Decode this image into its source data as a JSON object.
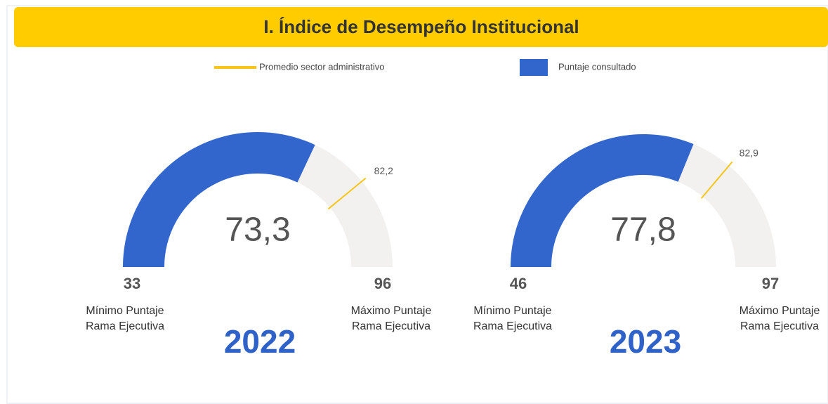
{
  "header": {
    "title": "I. Índice de Desempeño Institucional"
  },
  "legend": [
    {
      "name": "Promedio sector administrativo",
      "color": "#f5c518"
    },
    {
      "name": "Puntaje consultado",
      "color": "#3366cc"
    }
  ],
  "chart_data": [
    {
      "type": "gauge",
      "title": "2022",
      "value": 73.3,
      "value_labels": "73,3",
      "min": 33,
      "max": 96,
      "target": {
        "value": 82.2,
        "label": "82,2"
      },
      "min_label": [
        "Mínimo Puntaje",
        "Rama Ejecutiva"
      ],
      "max_label": [
        "Máximo Puntaje",
        "Rama Ejecutiva"
      ],
      "color": "#3366cc",
      "track_color": "#f2f1f0",
      "target_color": "#f5c518"
    },
    {
      "type": "gauge",
      "title": "2023",
      "value": 77.8,
      "value_labels": "77,8",
      "min": 46,
      "max": 97,
      "target": {
        "value": 82.9,
        "label": "82,9"
      },
      "min_label": [
        "Mínimo Puntaje",
        "Rama Ejecutiva"
      ],
      "max_label": [
        "Máximo Puntaje",
        "Rama Ejecutiva"
      ],
      "color": "#3366cc",
      "track_color": "#f2f1f0",
      "target_color": "#f5c518"
    }
  ]
}
